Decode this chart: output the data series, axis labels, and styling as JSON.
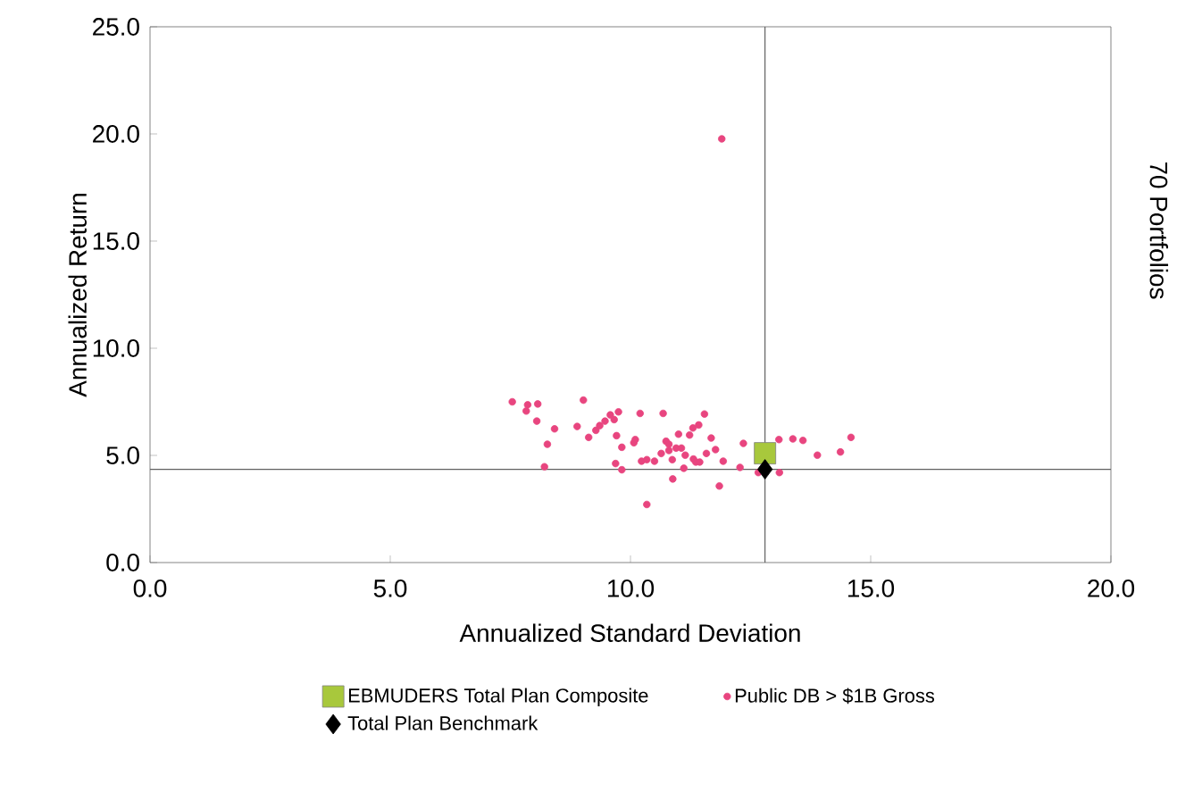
{
  "chart_data": {
    "type": "scatter",
    "xlabel": "Annualized Standard Deviation",
    "ylabel": "Annualized Return",
    "annotations": [
      "70 Portfolios"
    ],
    "xlim": [
      0,
      20
    ],
    "ylim": [
      0,
      25
    ],
    "xticks": [
      {
        "value": 0,
        "label": "0.0"
      },
      {
        "value": 5,
        "label": "5.0"
      },
      {
        "value": 10,
        "label": "10.0"
      },
      {
        "value": 15,
        "label": "15.0"
      },
      {
        "value": 20,
        "label": "20.0"
      }
    ],
    "yticks": [
      {
        "value": 0,
        "label": "0.0"
      },
      {
        "value": 5,
        "label": "5.0"
      },
      {
        "value": 10,
        "label": "10.0"
      },
      {
        "value": 15,
        "label": "15.0"
      },
      {
        "value": 20,
        "label": "20.0"
      },
      {
        "value": 25,
        "label": "25.0"
      }
    ],
    "grid": false,
    "legend": "bottom",
    "ref_lines": [
      {
        "axis": "x",
        "value": 12.8,
        "color": "#606060"
      },
      {
        "axis": "y",
        "value": 4.35,
        "color": "#606060"
      }
    ],
    "series": [
      {
        "name": "EBMUDERS Total Plan Composite",
        "color": "#a8c83c",
        "marker": "square",
        "x": [
          12.8
        ],
        "values": [
          5.1
        ]
      },
      {
        "name": "Total Plan Benchmark",
        "color": "#000000",
        "marker": "diamond",
        "x": [
          12.8
        ],
        "values": [
          4.35
        ]
      },
      {
        "name": "Public DB > $1B Gross",
        "color": "#e8457f",
        "marker": "circle",
        "x": [
          7.54,
          7.86,
          8.07,
          7.83,
          8.05,
          8.42,
          8.27,
          8.21,
          8.89,
          9.02,
          9.13,
          9.28,
          9.36,
          9.47,
          9.58,
          9.66,
          9.75,
          9.71,
          9.82,
          9.69,
          9.82,
          10.07,
          10.1,
          10.2,
          10.23,
          10.34,
          10.34,
          10.5,
          10.64,
          10.68,
          10.74,
          10.8,
          10.87,
          10.88,
          10.8,
          10.95,
          11.0,
          11.06,
          11.11,
          11.14,
          11.23,
          11.3,
          11.31,
          11.36,
          11.42,
          11.44,
          11.54,
          11.58,
          11.68,
          11.77,
          11.85,
          11.93,
          11.9,
          12.28,
          12.35,
          12.66,
          13.09,
          13.1,
          13.38,
          13.59,
          13.89,
          14.37,
          14.59
        ],
        "values": [
          7.5,
          7.36,
          7.4,
          7.07,
          6.6,
          6.24,
          5.52,
          4.47,
          6.35,
          7.58,
          5.84,
          6.17,
          6.39,
          6.6,
          6.89,
          6.67,
          7.03,
          5.92,
          5.38,
          4.62,
          4.33,
          5.59,
          5.74,
          6.96,
          4.73,
          4.8,
          2.71,
          4.73,
          5.09,
          6.96,
          5.66,
          5.52,
          4.8,
          3.9,
          5.23,
          5.34,
          5.99,
          5.34,
          4.4,
          5.01,
          5.95,
          6.28,
          4.83,
          4.69,
          6.42,
          4.69,
          6.93,
          5.09,
          5.81,
          5.27,
          3.57,
          4.73,
          19.77,
          4.44,
          5.56,
          4.2,
          5.74,
          4.2,
          5.77,
          5.7,
          5.01,
          5.16,
          5.84
        ]
      }
    ]
  }
}
